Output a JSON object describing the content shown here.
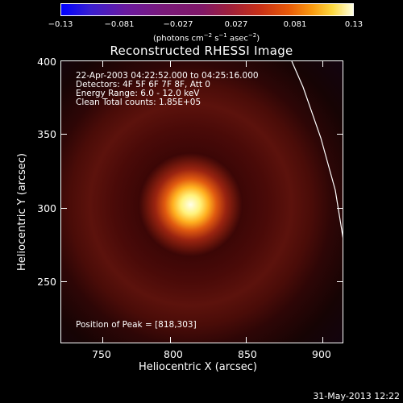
{
  "colorbar": {
    "ticks": [
      "−0.13",
      "−0.081",
      "−0.027",
      "0.027",
      "0.081",
      "0.13"
    ],
    "units_prefix": "(photons cm",
    "units_exp1": "−2",
    "units_mid": " s",
    "units_exp2": "−1",
    "units_mid2": " asec",
    "units_exp3": "−2",
    "units_suffix": ")"
  },
  "image": {
    "title": "Reconstructed RHESSI Image",
    "info_lines": [
      "22-Apr-2003 04:22:52.000 to 04:25:16.000",
      "Detectors: 4F 5F 6F 7F 8F, Att 0",
      "Energy Range: 6.0 - 12.0 keV",
      "Clean    Total counts: 1.85E+05"
    ],
    "peak_label": "Position of Peak = [818,303]"
  },
  "axes": {
    "xlabel": "Heliocentric X (arcsec)",
    "ylabel": "Heliocentric Y (arcsec)",
    "xticks": [
      "750",
      "800",
      "850",
      "900"
    ],
    "yticks": [
      "400",
      "350",
      "300",
      "250"
    ]
  },
  "footer": {
    "date": "31-May-2013 12:22"
  }
}
